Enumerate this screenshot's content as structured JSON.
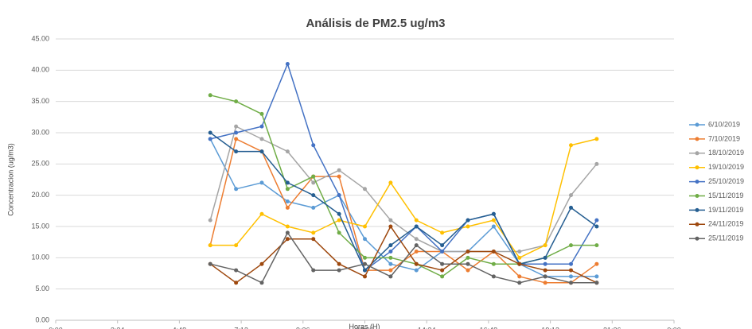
{
  "chart_data": {
    "type": "line",
    "title": "Análisis de PM2.5 ug/m3",
    "x_label": "Horas (H)",
    "y_label": "Concentracion (ug/m3)",
    "x": [
      6,
      7,
      8,
      9,
      10,
      11,
      12,
      13,
      14,
      15,
      16,
      17,
      18,
      19,
      20,
      21
    ],
    "xlim": [
      0,
      24
    ],
    "xticks": [
      {
        "value": 0,
        "label": "0:00"
      },
      {
        "value": 2.4,
        "label": "2:24"
      },
      {
        "value": 4.8,
        "label": "4:48"
      },
      {
        "value": 7.2,
        "label": "7:12"
      },
      {
        "value": 9.6,
        "label": "9:36"
      },
      {
        "value": 12,
        "label": "12:00"
      },
      {
        "value": 14.4,
        "label": "14:24"
      },
      {
        "value": 16.8,
        "label": "16:48"
      },
      {
        "value": 19.2,
        "label": "19:12"
      },
      {
        "value": 21.6,
        "label": "21:36"
      },
      {
        "value": 24,
        "label": "0:00"
      }
    ],
    "ylim": [
      0,
      45
    ],
    "yticks": [
      {
        "value": 0,
        "label": "0.00"
      },
      {
        "value": 5,
        "label": "5.00"
      },
      {
        "value": 10,
        "label": "10.00"
      },
      {
        "value": 15,
        "label": "15.00"
      },
      {
        "value": 20,
        "label": "20.00"
      },
      {
        "value": 25,
        "label": "25.00"
      },
      {
        "value": 30,
        "label": "30.00"
      },
      {
        "value": 35,
        "label": "35.00"
      },
      {
        "value": 40,
        "label": "40.00"
      },
      {
        "value": 45,
        "label": "45.00"
      }
    ],
    "grid": true,
    "legend": "right",
    "series": [
      {
        "name": "6/10/2019",
        "color": "#5b9bd5",
        "values": [
          29,
          21,
          22,
          19,
          18,
          20,
          13,
          9,
          8,
          11,
          11,
          15,
          9,
          7,
          7,
          7
        ]
      },
      {
        "name": "7/10/2019",
        "color": "#ed7d31",
        "values": [
          12,
          29,
          27,
          18,
          23,
          23,
          8,
          8,
          11,
          11,
          8,
          11,
          7,
          6,
          6,
          9
        ]
      },
      {
        "name": "18/10/2019",
        "color": "#a5a5a5",
        "values": [
          16,
          31,
          29,
          27,
          22,
          24,
          21,
          16,
          13,
          11,
          11,
          11,
          11,
          12,
          20,
          25
        ]
      },
      {
        "name": "19/10/2019",
        "color": "#ffc000",
        "values": [
          12,
          12,
          17,
          15,
          14,
          16,
          15,
          22,
          16,
          14,
          15,
          16,
          10,
          12,
          28,
          29
        ]
      },
      {
        "name": "25/10/2019",
        "color": "#4472c4",
        "values": [
          29,
          30,
          31,
          41,
          28,
          20,
          8,
          11,
          15,
          11,
          16,
          17,
          9,
          9,
          9,
          16
        ]
      },
      {
        "name": "15/11/2019",
        "color": "#70ad47",
        "values": [
          36,
          35,
          33,
          21,
          23,
          14,
          10,
          10,
          9,
          7,
          10,
          9,
          9,
          10,
          12,
          12
        ]
      },
      {
        "name": "19/11/2019",
        "color": "#255e91",
        "values": [
          30,
          27,
          27,
          22,
          20,
          17,
          8,
          12,
          15,
          12,
          16,
          17,
          9,
          10,
          18,
          15
        ]
      },
      {
        "name": "24/11/2019",
        "color": "#9e480e",
        "values": [
          9,
          6,
          9,
          13,
          13,
          9,
          7,
          15,
          9,
          8,
          11,
          11,
          9,
          8,
          8,
          6
        ]
      },
      {
        "name": "25/11/2019",
        "color": "#636363",
        "values": [
          9,
          8,
          6,
          14,
          8,
          8,
          9,
          7,
          12,
          9,
          9,
          7,
          6,
          7,
          6,
          6
        ]
      }
    ]
  }
}
